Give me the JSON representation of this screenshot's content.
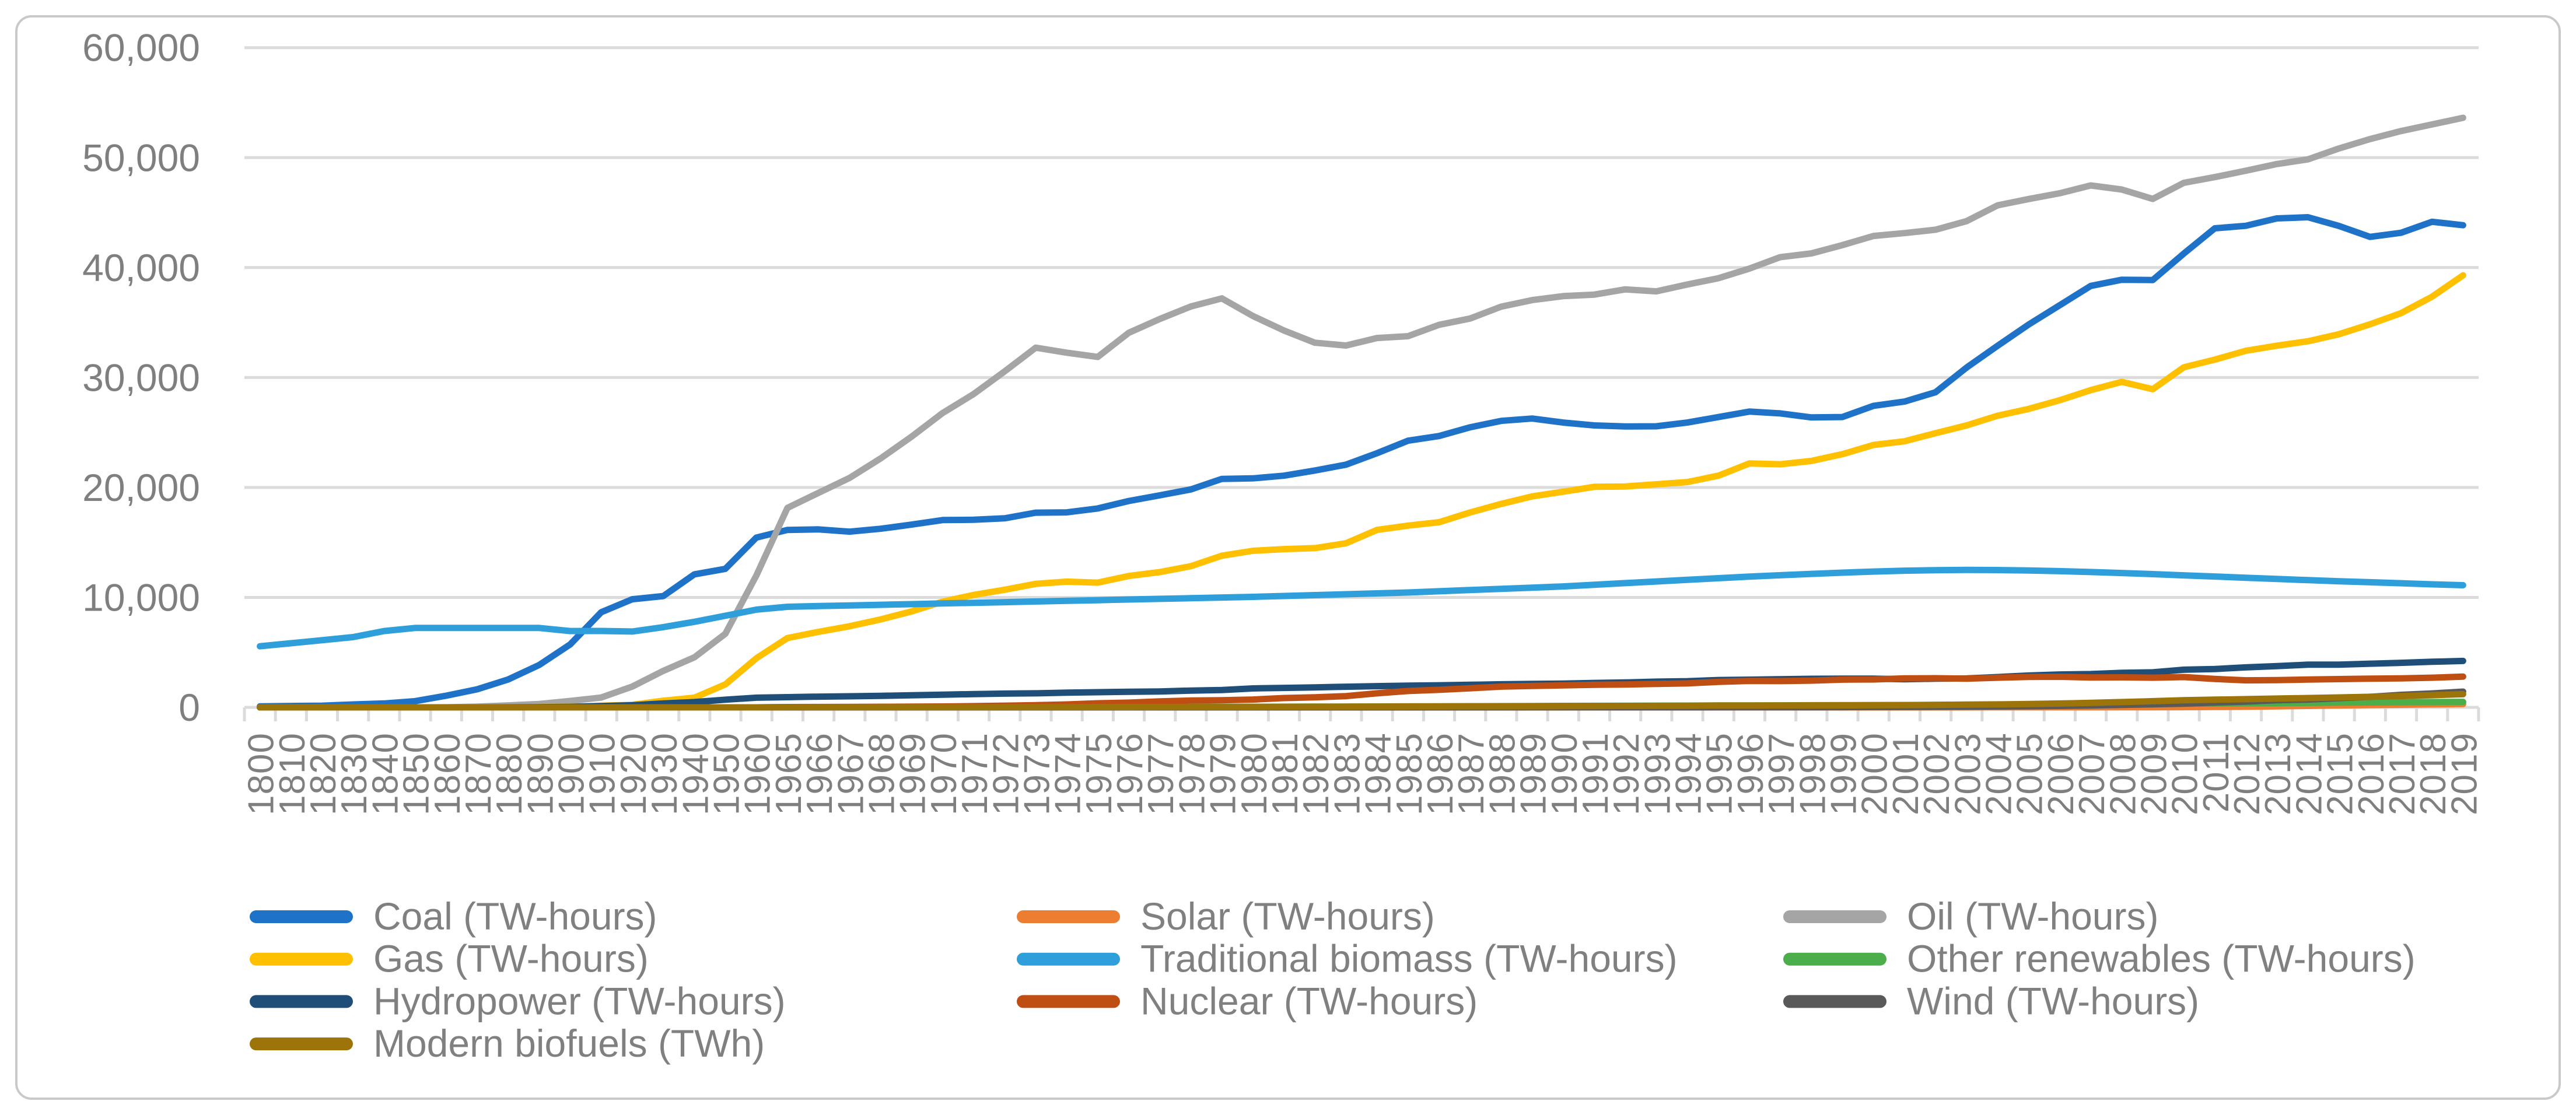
{
  "figure": {
    "background": "#FFFFFF",
    "border_color": "#C9C9C9"
  },
  "axes": {
    "gridline_color": "#DBDBDB",
    "label_color": "#7F7F7F"
  },
  "legend": {
    "text_color": "#808080",
    "columns": 3,
    "position": "bottom"
  },
  "chart_data": {
    "type": "line",
    "title": "",
    "xlabel": "",
    "ylabel": "",
    "ylim": [
      0,
      60000
    ],
    "y_tick_interval": 10000,
    "grid": true,
    "legend_position": "bottom",
    "y_ticks": [
      "0",
      "10,000",
      "20,000",
      "30,000",
      "40,000",
      "50,000",
      "60,000"
    ],
    "x": [
      "1800",
      "1810",
      "1820",
      "1830",
      "1840",
      "1850",
      "1860",
      "1870",
      "1880",
      "1890",
      "1900",
      "1910",
      "1920",
      "1930",
      "1940",
      "1950",
      "1960",
      "1965",
      "1966",
      "1967",
      "1968",
      "1969",
      "1970",
      "1971",
      "1972",
      "1973",
      "1974",
      "1975",
      "1976",
      "1977",
      "1978",
      "1979",
      "1980",
      "1981",
      "1982",
      "1983",
      "1984",
      "1985",
      "1986",
      "1987",
      "1988",
      "1989",
      "1990",
      "1991",
      "1992",
      "1993",
      "1994",
      "1995",
      "1996",
      "1997",
      "1998",
      "1999",
      "2000",
      "2001",
      "2002",
      "2003",
      "2004",
      "2005",
      "2006",
      "2007",
      "2008",
      "2009",
      "2010",
      "2011",
      "2012",
      "2013",
      "2014",
      "2015",
      "2016",
      "2017",
      "2018",
      "2019"
    ],
    "series": [
      {
        "name": "coal",
        "label": "Coal (TW-hours)",
        "color": "#1E72C8",
        "values": [
          97,
          128,
          153,
          264,
          356,
          569,
          1061,
          1642,
          2542,
          3856,
          5728,
          8656,
          9833,
          10125,
          12097,
          12603,
          15442,
          16140,
          16186,
          15982,
          16243,
          16620,
          17034,
          17061,
          17193,
          17707,
          17734,
          18092,
          18769,
          19283,
          19822,
          20779,
          20829,
          21069,
          21544,
          22075,
          23116,
          24253,
          24676,
          25473,
          26056,
          26268,
          25905,
          25642,
          25550,
          25563,
          25903,
          26402,
          26900,
          26737,
          26368,
          26407,
          27427,
          27811,
          28663,
          30905,
          32890,
          34817,
          36573,
          38331,
          38891,
          38863,
          41274,
          43570,
          43796,
          44470,
          44577,
          43786,
          42790,
          43160,
          44165,
          43849
        ]
      },
      {
        "name": "solar",
        "label": "Solar (TW-hours)",
        "color": "#ED7D31",
        "values": [
          0,
          0,
          0,
          0,
          0,
          0,
          0,
          0,
          0,
          0,
          0,
          0,
          0,
          0,
          0,
          0,
          0,
          0,
          0,
          0,
          0,
          0,
          0,
          0,
          0,
          0,
          0,
          0,
          0,
          0,
          0,
          0,
          0,
          0,
          0,
          0,
          0,
          0,
          0,
          0,
          0,
          0,
          0,
          0,
          0,
          0,
          0,
          0,
          0,
          0,
          0,
          0,
          1,
          1,
          2,
          2,
          3,
          4,
          5,
          6,
          8,
          12,
          20,
          35,
          60,
          90,
          130,
          170,
          210,
          240,
          270,
          300
        ]
      },
      {
        "name": "oil",
        "label": "Oil (TW-hours)",
        "color": "#A5A5A5",
        "values": [
          0,
          0,
          0,
          0,
          0,
          0,
          6,
          64,
          178,
          306,
          583,
          894,
          1892,
          3322,
          4553,
          6700,
          12000,
          18145,
          19505,
          20862,
          22634,
          24618,
          26766,
          28496,
          30562,
          32715,
          32255,
          31870,
          34065,
          35324,
          36457,
          37193,
          35591,
          34280,
          33163,
          32909,
          33594,
          33760,
          34794,
          35363,
          36441,
          37038,
          37402,
          37537,
          38018,
          37838,
          38454,
          39027,
          39906,
          40951,
          41288,
          42042,
          42875,
          43136,
          43440,
          44223,
          45658,
          46234,
          46756,
          47468,
          47095,
          46245,
          47706,
          48225,
          48810,
          49413,
          49839,
          50830,
          51682,
          52418,
          53013,
          53620
        ]
      },
      {
        "name": "gas",
        "label": "Gas (TW-hours)",
        "color": "#FFC000",
        "values": [
          0,
          0,
          0,
          0,
          0,
          0,
          0,
          0,
          0,
          33,
          64,
          141,
          233,
          603,
          878,
          2092,
          4472,
          6304,
          6869,
          7377,
          8000,
          8726,
          9614,
          10224,
          10700,
          11232,
          11432,
          11344,
          11947,
          12303,
          12842,
          13793,
          14239,
          14392,
          14486,
          14924,
          16139,
          16534,
          16839,
          17727,
          18506,
          19190,
          19613,
          20060,
          20091,
          20288,
          20495,
          21072,
          22180,
          22109,
          22414,
          23030,
          23865,
          24200,
          24938,
          25643,
          26526,
          27142,
          27935,
          28852,
          29607,
          28937,
          30929,
          31626,
          32432,
          32894,
          33296,
          33938,
          34840,
          35850,
          37350,
          39292
        ]
      },
      {
        "name": "traditional-biomass",
        "label": "Traditional biomass (TW-hours)",
        "color": "#2E9FDA",
        "values": [
          5556,
          5833,
          6111,
          6389,
          6944,
          7222,
          7222,
          7222,
          7222,
          7222,
          6944,
          6950,
          6900,
          7300,
          7778,
          8333,
          8889,
          9150,
          9210,
          9270,
          9330,
          9390,
          9450,
          9510,
          9570,
          9630,
          9690,
          9750,
          9810,
          9870,
          9930,
          9990,
          10050,
          10130,
          10210,
          10290,
          10370,
          10450,
          10560,
          10670,
          10780,
          10890,
          11000,
          11150,
          11300,
          11450,
          11600,
          11750,
          11890,
          12020,
          12140,
          12250,
          12350,
          12430,
          12480,
          12500,
          12490,
          12450,
          12390,
          12310,
          12220,
          12120,
          12010,
          11900,
          11790,
          11680,
          11570,
          11470,
          11380,
          11290,
          11190,
          11110
        ]
      },
      {
        "name": "other-renewables",
        "label": "Other renewables (TW-hours)",
        "color": "#4CAE4A",
        "values": [
          0,
          0,
          0,
          0,
          0,
          0,
          0,
          0,
          0,
          0,
          0,
          0,
          0,
          0,
          0,
          0,
          0,
          16,
          17,
          18,
          19,
          21,
          24,
          26,
          28,
          30,
          32,
          34,
          37,
          40,
          43,
          47,
          52,
          58,
          64,
          71,
          79,
          88,
          96,
          104,
          112,
          121,
          130,
          138,
          145,
          153,
          160,
          168,
          175,
          182,
          190,
          197,
          205,
          214,
          224,
          235,
          247,
          260,
          274,
          289,
          305,
          322,
          340,
          358,
          376,
          395,
          414,
          434,
          452,
          469,
          485,
          500
        ]
      },
      {
        "name": "hydropower",
        "label": "Hydropower (TW-hours)",
        "color": "#1F4E79",
        "values": [
          0,
          0,
          0,
          0,
          0,
          0,
          0,
          0,
          5,
          19,
          47,
          119,
          192,
          356,
          480,
          700,
          880,
          926,
          974,
          1010,
          1050,
          1100,
          1150,
          1210,
          1250,
          1280,
          1340,
          1380,
          1420,
          1450,
          1530,
          1580,
          1723,
          1770,
          1820,
          1880,
          1930,
          1979,
          2010,
          2050,
          2100,
          2130,
          2159,
          2220,
          2266,
          2340,
          2380,
          2490,
          2520,
          2560,
          2600,
          2610,
          2613,
          2560,
          2610,
          2630,
          2760,
          2894,
          2990,
          3030,
          3140,
          3190,
          3428,
          3490,
          3640,
          3750,
          3880,
          3884,
          3970,
          4050,
          4150,
          4222
        ]
      },
      {
        "name": "nuclear",
        "label": "Nuclear (TW-hours)",
        "color": "#BF4E12",
        "values": [
          0,
          0,
          0,
          0,
          0,
          0,
          0,
          0,
          0,
          0,
          0,
          0,
          0,
          0,
          0,
          0,
          0,
          26,
          32,
          42,
          53,
          62,
          79,
          111,
          153,
          203,
          265,
          370,
          432,
          541,
          628,
          654,
          713,
          846,
          912,
          1022,
          1278,
          1489,
          1597,
          1735,
          1890,
          1945,
          2001,
          2057,
          2081,
          2136,
          2179,
          2322,
          2406,
          2390,
          2432,
          2523,
          2540,
          2637,
          2654,
          2616,
          2701,
          2768,
          2784,
          2719,
          2731,
          2697,
          2756,
          2584,
          2462,
          2478,
          2536,
          2571,
          2612,
          2639,
          2701,
          2796
        ]
      },
      {
        "name": "wind",
        "label": "Wind (TW-hours)",
        "color": "#595959",
        "values": [
          0,
          0,
          0,
          0,
          0,
          0,
          0,
          0,
          0,
          0,
          0,
          0,
          0,
          0,
          0,
          0,
          0,
          0,
          0,
          0,
          0,
          0,
          0,
          0,
          0,
          0,
          0,
          0,
          0,
          0,
          0,
          0,
          0,
          0,
          0,
          0,
          0,
          1,
          1,
          2,
          2,
          3,
          4,
          5,
          5,
          6,
          7,
          8,
          9,
          12,
          16,
          21,
          31,
          38,
          52,
          63,
          85,
          104,
          133,
          171,
          221,
          276,
          342,
          437,
          523,
          646,
          712,
          831,
          958,
          1140,
          1270,
          1430
        ]
      },
      {
        "name": "modern-biofuels",
        "label": "Modern biofuels (TWh)",
        "color": "#9C7409",
        "values": [
          0,
          0,
          0,
          0,
          0,
          0,
          0,
          0,
          0,
          0,
          0,
          0,
          0,
          0,
          0,
          0,
          0,
          10,
          11,
          12,
          13,
          14,
          15,
          17,
          19,
          21,
          23,
          25,
          28,
          31,
          35,
          40,
          50,
          55,
          60,
          66,
          73,
          80,
          85,
          90,
          96,
          102,
          109,
          119,
          130,
          140,
          151,
          162,
          167,
          172,
          178,
          184,
          190,
          208,
          226,
          248,
          272,
          300,
          350,
          410,
          480,
          560,
          650,
          700,
          750,
          800,
          850,
          900,
          960,
          1030,
          1110,
          1200
        ]
      }
    ]
  }
}
